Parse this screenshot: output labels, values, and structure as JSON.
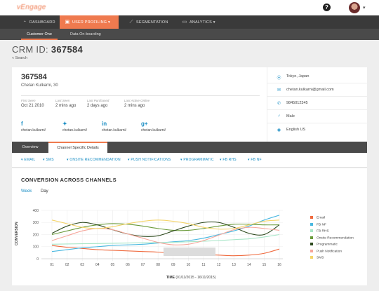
{
  "app": {
    "logo_text": "vEngage"
  },
  "header": {
    "help_icon": "question-circle-icon",
    "help_glyph": "?",
    "avatar_caret": "▾"
  },
  "nav": {
    "items": [
      {
        "label": "DASHBOARD",
        "icon": "dashboard-icon",
        "glyph": "◔"
      },
      {
        "label": "USER PROFILING",
        "icon": "user-profiling-icon",
        "glyph": "▣",
        "active": true,
        "caret": "▾"
      },
      {
        "label": "SEGMENTATION",
        "icon": "segmentation-icon",
        "glyph": "⟋"
      },
      {
        "label": "ANALYTICS",
        "icon": "analytics-icon",
        "glyph": "▭",
        "caret": "▾"
      }
    ],
    "sub_items": [
      {
        "label": "Customer One",
        "active": true
      },
      {
        "label": "Data On-boarding"
      }
    ]
  },
  "page": {
    "title_prefix": "CRM ID:",
    "title_id": "367584",
    "back_label": "« Search"
  },
  "profile": {
    "id": "367584",
    "name": "Chetan Kulkarni,  30",
    "stats": [
      {
        "label": "First Seen",
        "value": "Oct 21 2010"
      },
      {
        "label": "Last Seen",
        "value": "2 mins ago"
      },
      {
        "label": "Last Purchased",
        "value": "2 days ago"
      },
      {
        "label": "Last Active Online",
        "value": "2 mins ago"
      }
    ],
    "social": [
      {
        "icon": "facebook-icon",
        "glyph": "f",
        "handle": "chetan.kulkarni/"
      },
      {
        "icon": "twitter-icon",
        "glyph": "✦",
        "handle": "chetan.kulkarni/"
      },
      {
        "icon": "linkedin-icon",
        "glyph": "in",
        "handle": "chetan.kulkarni/"
      },
      {
        "icon": "google-plus-icon",
        "glyph": "g+",
        "handle": "chetan.kulkarni/"
      }
    ],
    "details": [
      {
        "icon": "location-pin-icon",
        "glyph": "⦿",
        "text": "Tokyo, Japan"
      },
      {
        "icon": "email-icon",
        "glyph": "✉",
        "text": "chetan.kulkarni@gmail.com"
      },
      {
        "icon": "phone-icon",
        "glyph": "✆",
        "text": "9845012345"
      },
      {
        "icon": "gender-icon",
        "glyph": "♂",
        "text": "Male"
      },
      {
        "icon": "language-icon",
        "glyph": "◉",
        "text": "English US"
      }
    ]
  },
  "tabs": [
    {
      "label": "Overview"
    },
    {
      "label": "Channel Specific Details",
      "active": true
    }
  ],
  "channels": [
    {
      "label": "EMAIL"
    },
    {
      "label": "SMS"
    },
    {
      "label": "ONSITE RECOMMENDATION"
    },
    {
      "label": "PUSH NOTIFICATIONS"
    },
    {
      "label": "PROGRAMMATIC"
    },
    {
      "label": "FB RHS"
    },
    {
      "label": "FB NF"
    }
  ],
  "channel_caret": "▾",
  "conversion": {
    "title": "CONVERSION ACROSS CHANNELS",
    "periods": [
      "Week",
      "Day"
    ],
    "active_period": "Week"
  },
  "chart_data": {
    "type": "line",
    "title": "CONVERSION ACROSS CHANNELS",
    "ylabel": "CONVERSION",
    "xlabel_bold": "TIME",
    "xlabel_range": "(01/11/2015 - 16/11/2015)",
    "x": [
      "01",
      "02",
      "03",
      "04",
      "05",
      "06",
      "07",
      "08",
      "09",
      "10",
      "11",
      "12",
      "13",
      "14",
      "15",
      "16"
    ],
    "ylim": [
      0,
      400
    ],
    "yticks": [
      0,
      100,
      200,
      300,
      400
    ],
    "grid": true,
    "legend_position": "right",
    "series": [
      {
        "name": "Email",
        "color": "#ef6a3e",
        "values": [
          110,
          95,
          85,
          75,
          70,
          65,
          60,
          55,
          45,
          40,
          35,
          30,
          25,
          30,
          45,
          80
        ]
      },
      {
        "name": "FB NF",
        "color": "#4ab8e0",
        "values": [
          60,
          75,
          90,
          100,
          110,
          115,
          120,
          130,
          140,
          150,
          170,
          200,
          230,
          270,
          320,
          360
        ]
      },
      {
        "name": "FB RHS",
        "color": "#a8e6c8",
        "values": [
          120,
          122,
          124,
          126,
          128,
          130,
          132,
          134,
          136,
          140,
          145,
          150,
          158,
          165,
          180,
          200
        ]
      },
      {
        "name": "Onsite Recommendation",
        "color": "#6a9a3a",
        "values": [
          200,
          230,
          260,
          280,
          290,
          285,
          270,
          250,
          235,
          235,
          250,
          270,
          285,
          285,
          280,
          280
        ]
      },
      {
        "name": "Programmatic",
        "color": "#2e4a1e",
        "values": [
          210,
          270,
          300,
          280,
          240,
          205,
          185,
          190,
          230,
          270,
          300,
          300,
          260,
          210,
          200,
          280
        ]
      },
      {
        "name": "Push Notification",
        "color": "#f6a59a",
        "values": [
          150,
          190,
          230,
          250,
          240,
          205,
          170,
          135,
          115,
          120,
          150,
          195,
          240,
          260,
          250,
          235
        ]
      },
      {
        "name": "SMS",
        "color": "#f4d46a",
        "values": [
          320,
          290,
          260,
          250,
          265,
          290,
          310,
          320,
          310,
          290,
          260,
          245,
          250,
          280,
          310,
          320
        ]
      }
    ]
  }
}
